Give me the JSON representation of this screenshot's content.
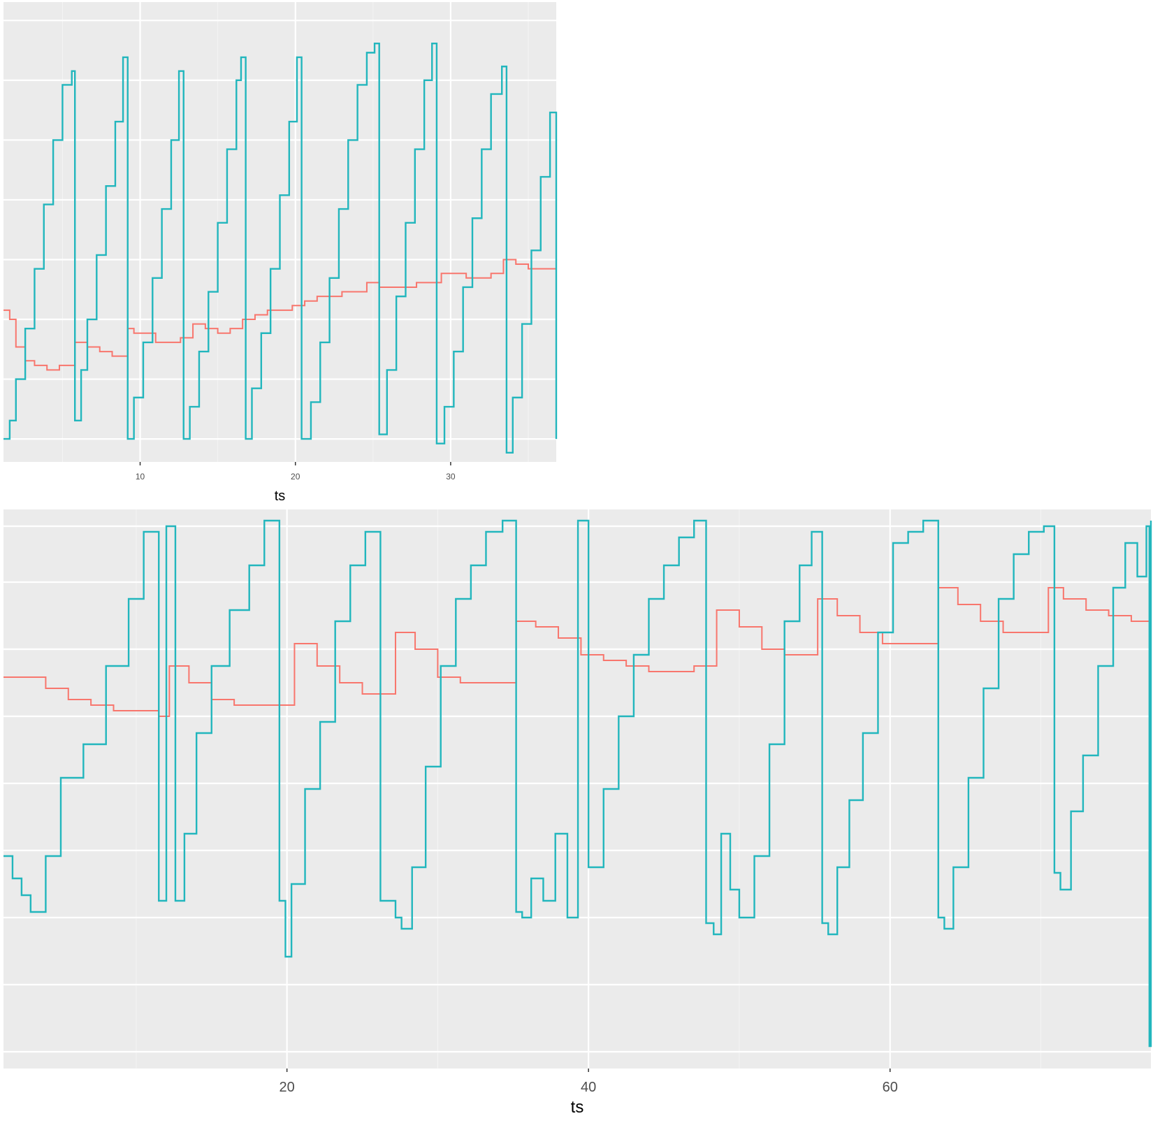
{
  "colors": {
    "panel_background": "#ebebeb",
    "major_grid": "#ffffff",
    "minor_grid": "#f4f4f4",
    "series_red": "#f8766d",
    "series_teal": "#22b6bd"
  },
  "chart_data": [
    {
      "type": "line",
      "title": "",
      "xlabel": "ts",
      "ylabel": "",
      "xlim": [
        1.2,
        36.8
      ],
      "ylim": [
        0,
        1
      ],
      "x_ticks": [
        10,
        20,
        30
      ],
      "x_tick_labels": [
        "10",
        "20",
        "30"
      ],
      "y_tick_labels": [],
      "grid": true,
      "legend": "none",
      "series": [
        {
          "color": "#f8766d",
          "x": [
            1.2,
            1.6,
            2.0,
            2.6,
            3.2,
            4.0,
            4.8,
            5.8,
            6.6,
            7.4,
            8.2,
            9.2,
            9.6,
            10.2,
            11.0,
            11.8,
            12.6,
            13.4,
            14.2,
            15.0,
            15.8,
            16.6,
            17.4,
            18.2,
            19.0,
            19.8,
            20.6,
            21.4,
            22.2,
            23.0,
            23.8,
            24.6,
            25.4,
            26.2,
            27.0,
            27.8,
            28.6,
            29.4,
            30.2,
            31.0,
            31.8,
            32.6,
            33.4,
            34.2,
            35.0,
            35.8,
            36.8
          ],
          "y": [
            0.33,
            0.31,
            0.25,
            0.22,
            0.21,
            0.2,
            0.21,
            0.26,
            0.25,
            0.24,
            0.23,
            0.29,
            0.28,
            0.28,
            0.26,
            0.26,
            0.27,
            0.3,
            0.29,
            0.28,
            0.29,
            0.31,
            0.32,
            0.33,
            0.33,
            0.34,
            0.35,
            0.36,
            0.36,
            0.37,
            0.37,
            0.39,
            0.38,
            0.38,
            0.38,
            0.39,
            0.39,
            0.41,
            0.41,
            0.4,
            0.4,
            0.41,
            0.44,
            0.43,
            0.42,
            0.42,
            0.46
          ]
        },
        {
          "color": "#22b6bd",
          "x": [
            1.2,
            1.6,
            2.0,
            2.6,
            3.2,
            3.8,
            4.4,
            5.0,
            5.6,
            5.8,
            6.2,
            6.6,
            7.2,
            7.8,
            8.4,
            8.9,
            9.2,
            9.6,
            10.2,
            10.8,
            11.4,
            12.0,
            12.5,
            12.8,
            13.2,
            13.8,
            14.4,
            15.0,
            15.6,
            16.2,
            16.5,
            16.8,
            17.2,
            17.8,
            18.4,
            19.0,
            19.6,
            20.1,
            20.4,
            21.0,
            21.6,
            22.2,
            22.8,
            23.4,
            24.0,
            24.6,
            25.1,
            25.4,
            25.9,
            26.5,
            27.1,
            27.7,
            28.3,
            28.8,
            29.1,
            29.6,
            30.2,
            30.8,
            31.4,
            32.0,
            32.6,
            33.3,
            33.6,
            34.0,
            34.6,
            35.2,
            35.8,
            36.4,
            36.8
          ],
          "y": [
            0.05,
            0.09,
            0.18,
            0.29,
            0.42,
            0.56,
            0.7,
            0.82,
            0.85,
            0.09,
            0.2,
            0.31,
            0.45,
            0.6,
            0.74,
            0.88,
            0.05,
            0.14,
            0.26,
            0.4,
            0.55,
            0.7,
            0.85,
            0.05,
            0.12,
            0.24,
            0.37,
            0.52,
            0.68,
            0.83,
            0.88,
            0.05,
            0.16,
            0.28,
            0.42,
            0.58,
            0.74,
            0.88,
            0.05,
            0.13,
            0.26,
            0.4,
            0.55,
            0.7,
            0.82,
            0.89,
            0.91,
            0.06,
            0.2,
            0.36,
            0.52,
            0.68,
            0.83,
            0.91,
            0.04,
            0.12,
            0.24,
            0.38,
            0.53,
            0.68,
            0.8,
            0.86,
            0.02,
            0.14,
            0.3,
            0.46,
            0.62,
            0.76,
            0.05
          ]
        }
      ]
    },
    {
      "type": "line",
      "title": "",
      "xlabel": "ts",
      "ylabel": "",
      "xlim": [
        1.2,
        77.3
      ],
      "ylim": [
        0,
        1
      ],
      "x_ticks": [
        20,
        40,
        60
      ],
      "x_tick_labels": [
        "20",
        "40",
        "60"
      ],
      "y_tick_labels": [],
      "grid": true,
      "legend": "none",
      "series": [
        {
          "color": "#f8766d",
          "x": [
            1.2,
            2.5,
            4.0,
            5.5,
            7.0,
            8.5,
            10.0,
            11.5,
            12.2,
            13.5,
            15.0,
            16.5,
            18.0,
            19.2,
            20.5,
            22.0,
            23.5,
            25.0,
            26.5,
            27.2,
            28.5,
            30.0,
            31.5,
            33.0,
            34.5,
            35.2,
            36.5,
            38.0,
            39.5,
            41.0,
            42.5,
            44.0,
            45.5,
            47.0,
            48.5,
            50.0,
            51.5,
            53.0,
            54.5,
            55.2,
            56.5,
            58.0,
            59.5,
            61.0,
            62.5,
            63.2,
            64.5,
            66.0,
            67.5,
            69.0,
            70.5,
            71.5,
            73.0,
            74.5,
            76.0,
            77.3
          ],
          "y": [
            0.7,
            0.7,
            0.68,
            0.66,
            0.65,
            0.64,
            0.64,
            0.63,
            0.72,
            0.69,
            0.66,
            0.65,
            0.65,
            0.65,
            0.76,
            0.72,
            0.69,
            0.67,
            0.67,
            0.78,
            0.75,
            0.7,
            0.69,
            0.69,
            0.69,
            0.8,
            0.79,
            0.77,
            0.74,
            0.73,
            0.72,
            0.71,
            0.71,
            0.72,
            0.82,
            0.79,
            0.75,
            0.74,
            0.74,
            0.84,
            0.81,
            0.78,
            0.76,
            0.76,
            0.76,
            0.86,
            0.83,
            0.8,
            0.78,
            0.78,
            0.86,
            0.84,
            0.82,
            0.81,
            0.8,
            0.81
          ]
        },
        {
          "color": "#22b6bd",
          "x": [
            1.2,
            1.8,
            2.4,
            3.0,
            4.0,
            5.0,
            6.5,
            8.0,
            9.5,
            10.5,
            11.5,
            12.0,
            12.6,
            13.2,
            14.0,
            15.0,
            16.2,
            17.5,
            18.5,
            19.5,
            19.9,
            20.3,
            21.2,
            22.2,
            23.2,
            24.2,
            25.2,
            26.2,
            27.2,
            27.6,
            28.3,
            29.2,
            30.2,
            31.2,
            32.2,
            33.2,
            34.3,
            35.2,
            35.6,
            36.2,
            37.0,
            37.8,
            38.6,
            39.3,
            40.0,
            41.0,
            42.0,
            43.0,
            44.0,
            45.0,
            46.0,
            47.0,
            47.8,
            48.3,
            48.8,
            49.4,
            50.0,
            51.0,
            52.0,
            53.0,
            54.0,
            54.8,
            55.5,
            55.9,
            56.5,
            57.3,
            58.2,
            59.2,
            60.2,
            61.2,
            62.2,
            63.2,
            63.6,
            64.2,
            65.2,
            66.2,
            67.2,
            68.2,
            69.2,
            70.2,
            70.9,
            71.3,
            72.0,
            72.8,
            73.8,
            74.8,
            75.6,
            76.4,
            77.0,
            77.2,
            77.3
          ],
          "y": [
            0.38,
            0.34,
            0.31,
            0.28,
            0.38,
            0.52,
            0.58,
            0.72,
            0.84,
            0.96,
            0.3,
            0.97,
            0.3,
            0.42,
            0.6,
            0.72,
            0.82,
            0.9,
            0.98,
            0.3,
            0.2,
            0.33,
            0.5,
            0.62,
            0.8,
            0.9,
            0.96,
            0.3,
            0.27,
            0.25,
            0.36,
            0.54,
            0.72,
            0.84,
            0.9,
            0.96,
            0.98,
            0.28,
            0.27,
            0.34,
            0.3,
            0.42,
            0.27,
            0.98,
            0.36,
            0.5,
            0.63,
            0.74,
            0.84,
            0.9,
            0.95,
            0.98,
            0.26,
            0.24,
            0.42,
            0.32,
            0.27,
            0.38,
            0.58,
            0.8,
            0.9,
            0.96,
            0.26,
            0.24,
            0.36,
            0.48,
            0.6,
            0.78,
            0.94,
            0.96,
            0.98,
            0.27,
            0.25,
            0.36,
            0.52,
            0.68,
            0.84,
            0.92,
            0.96,
            0.97,
            0.35,
            0.32,
            0.46,
            0.56,
            0.72,
            0.86,
            0.94,
            0.88,
            0.97,
            0.04,
            0.98
          ]
        }
      ]
    }
  ]
}
